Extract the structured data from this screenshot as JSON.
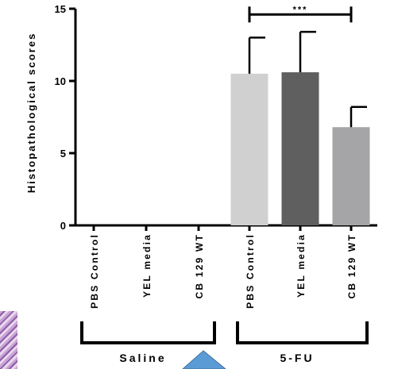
{
  "chart_data": {
    "type": "bar",
    "title": "",
    "xlabel": "",
    "ylabel": "Histopathological scores",
    "ylim": [
      0,
      15
    ],
    "yticks": [
      "0",
      "5",
      "10",
      "15"
    ],
    "categories": [
      "PBS Control",
      "YEL media",
      "CB 129 WT",
      "PBS Control",
      "YEL media",
      "CB 129 WT"
    ],
    "values": [
      0,
      0,
      0,
      10.5,
      10.6,
      6.8
    ],
    "errors": [
      0,
      0,
      0,
      2.5,
      2.8,
      1.4
    ],
    "bar_colors": [
      "#d0d0d0",
      "#5f5f5f",
      "#a5a5a8"
    ],
    "groups": [
      {
        "label": "Saline",
        "from": 0,
        "to": 2
      },
      {
        "label": "5-FU",
        "from": 3,
        "to": 5
      }
    ],
    "significance": {
      "label": "***",
      "from": 3,
      "to": 5,
      "y": 14.6
    },
    "grid": false,
    "legend": "none"
  },
  "decor": {
    "triangle_color": "#5b9bd5"
  }
}
